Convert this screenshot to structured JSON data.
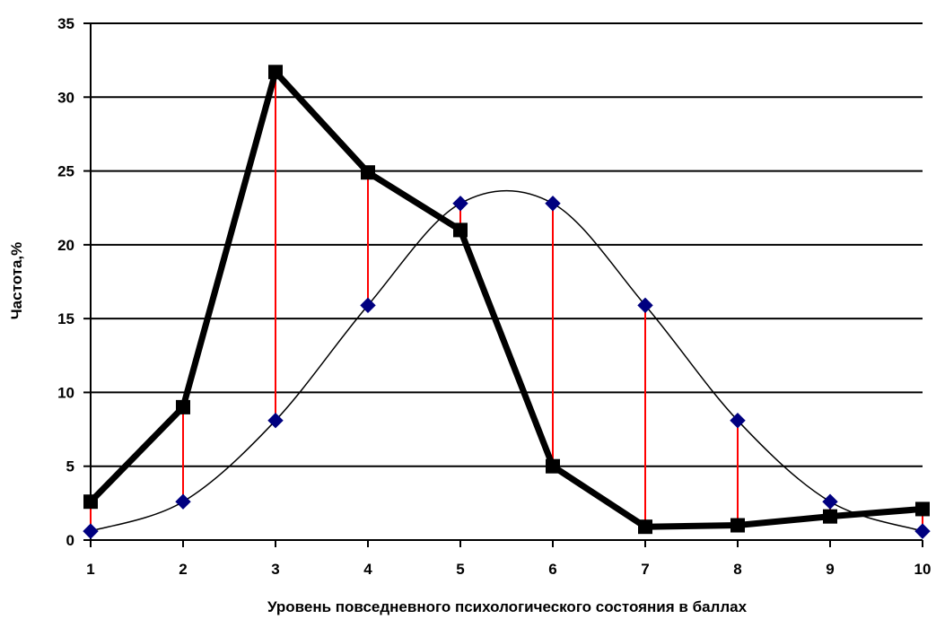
{
  "chart_data": {
    "type": "line",
    "title": "",
    "xlabel": "Уровень повседневного психологического состояния в баллах",
    "ylabel": "Частота,%",
    "x": [
      1,
      2,
      3,
      4,
      5,
      6,
      7,
      8,
      9,
      10
    ],
    "xlim": [
      1,
      10
    ],
    "ylim": [
      0,
      35
    ],
    "yticks": [
      0,
      5,
      10,
      15,
      20,
      25,
      30,
      35
    ],
    "grid": "horizontal",
    "legend": "none",
    "series": [
      {
        "marker": "square",
        "color": "#000000",
        "line_style": "thick",
        "values": [
          2.6,
          9.0,
          31.7,
          24.9,
          21.0,
          5.0,
          0.9,
          1.0,
          1.6,
          2.1
        ]
      },
      {
        "marker": "diamond",
        "color": "#000000",
        "marker_color": "#000080",
        "line_style": "thin-smooth",
        "values": [
          0.6,
          2.6,
          8.1,
          15.9,
          22.8,
          22.8,
          15.9,
          8.1,
          2.6,
          0.6
        ]
      }
    ],
    "difference_lines_color": "#ff0000"
  }
}
